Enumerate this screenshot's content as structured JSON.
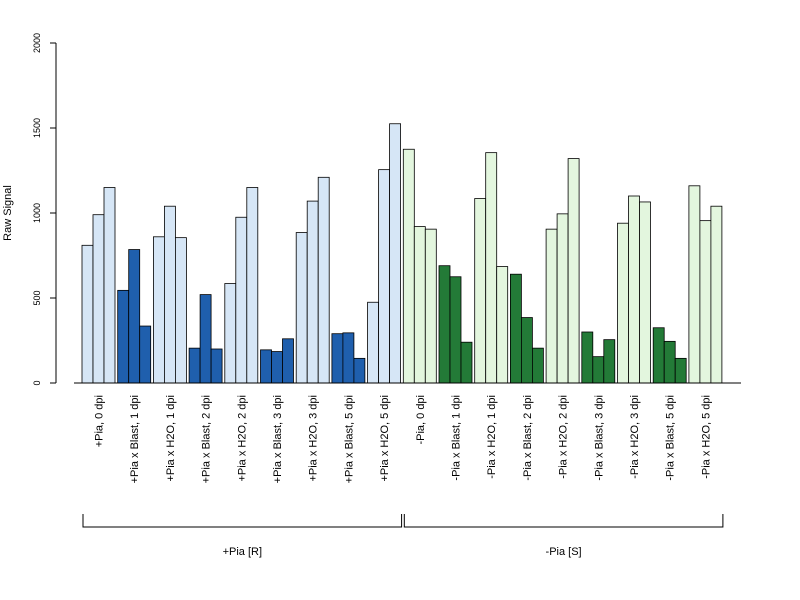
{
  "chart_data": {
    "type": "bar",
    "ylabel": "Raw Signal",
    "ylim": [
      0,
      2000
    ],
    "yticks": [
      0,
      500,
      1000,
      1500,
      2000
    ],
    "grid": false,
    "legend": "none",
    "colors": {
      "plus_light": "#d6e6f6",
      "plus_dark": "#1f5fad",
      "minus_light": "#e3f6de",
      "minus_dark": "#237a37"
    },
    "categories": [
      {
        "label": "+Pia, 0 dpi",
        "values": [
          810,
          990,
          1150
        ],
        "color": "plus_light"
      },
      {
        "label": "+Pia x Blast, 1 dpi",
        "values": [
          545,
          785,
          335
        ],
        "color": "plus_dark"
      },
      {
        "label": "+Pia x H2O, 1 dpi",
        "values": [
          860,
          1040,
          855
        ],
        "color": "plus_light"
      },
      {
        "label": "+Pia x Blast, 2 dpi",
        "values": [
          205,
          520,
          200
        ],
        "color": "plus_dark"
      },
      {
        "label": "+Pia x H2O, 2 dpi",
        "values": [
          585,
          975,
          1150
        ],
        "color": "plus_light"
      },
      {
        "label": "+Pia x Blast, 3 dpi",
        "values": [
          195,
          185,
          260
        ],
        "color": "plus_dark"
      },
      {
        "label": "+Pia x H2O, 3 dpi",
        "values": [
          885,
          1070,
          1210
        ],
        "color": "plus_light"
      },
      {
        "label": "+Pia x Blast, 5 dpi",
        "values": [
          290,
          295,
          145
        ],
        "color": "plus_dark"
      },
      {
        "label": "+Pia x H2O, 5 dpi",
        "values": [
          475,
          1255,
          1525
        ],
        "color": "plus_light"
      },
      {
        "label": "-Pia, 0 dpi",
        "values": [
          1375,
          920,
          905
        ],
        "color": "minus_light"
      },
      {
        "label": "-Pia x Blast, 1 dpi",
        "values": [
          690,
          625,
          240
        ],
        "color": "minus_dark"
      },
      {
        "label": "-Pia x H2O, 1 dpi",
        "values": [
          1085,
          1355,
          685
        ],
        "color": "minus_light"
      },
      {
        "label": "-Pia x Blast, 2 dpi",
        "values": [
          640,
          385,
          205
        ],
        "color": "minus_dark"
      },
      {
        "label": "-Pia x H2O, 2 dpi",
        "values": [
          905,
          995,
          1320
        ],
        "color": "minus_light"
      },
      {
        "label": "-Pia x Blast, 3 dpi",
        "values": [
          300,
          155,
          255
        ],
        "color": "minus_dark"
      },
      {
        "label": "-Pia x H2O, 3 dpi",
        "values": [
          940,
          1100,
          1065
        ],
        "color": "minus_light"
      },
      {
        "label": "-Pia x Blast, 5 dpi",
        "values": [
          325,
          245,
          145
        ],
        "color": "minus_dark"
      },
      {
        "label": "-Pia x H2O, 5 dpi",
        "values": [
          1160,
          955,
          1040
        ],
        "color": "minus_light"
      }
    ],
    "groups": [
      {
        "label": "+Pia [R]",
        "first": 0,
        "last": 8
      },
      {
        "label": "-Pia [S]",
        "first": 9,
        "last": 17
      }
    ]
  }
}
